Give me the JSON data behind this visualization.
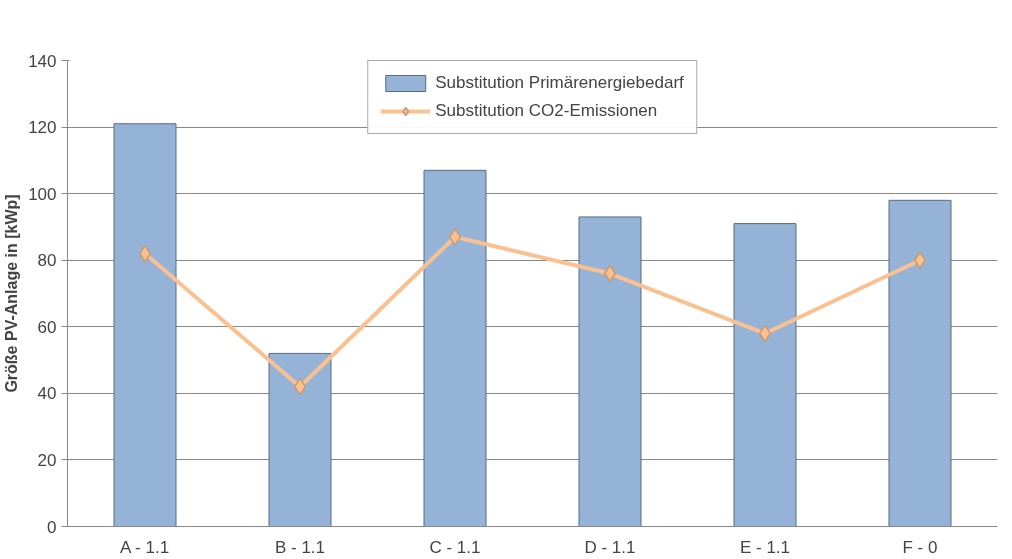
{
  "chart_data": {
    "type": "bar",
    "ylabel": "Größe PV-Anlage in [kWp]",
    "categories": [
      "A - 1.1",
      "B - 1.1",
      "C - 1.1",
      "D - 1.1",
      "E - 1.1",
      "F - 0"
    ],
    "series": [
      {
        "name": "Substitution Primärenergiebedarf",
        "color": "#95b3d7",
        "values": [
          121,
          52,
          107,
          93,
          91,
          98
        ]
      },
      {
        "name": "Substitution CO2-Emissionen",
        "type": "line",
        "color": "#fac090",
        "marker": "diamond",
        "values": [
          82,
          42,
          87,
          76,
          58,
          80
        ]
      }
    ],
    "ylim": [
      0,
      140
    ],
    "yticks": [
      0,
      20,
      40,
      60,
      80,
      100,
      120,
      140
    ],
    "grid": "y",
    "legend": "top"
  }
}
